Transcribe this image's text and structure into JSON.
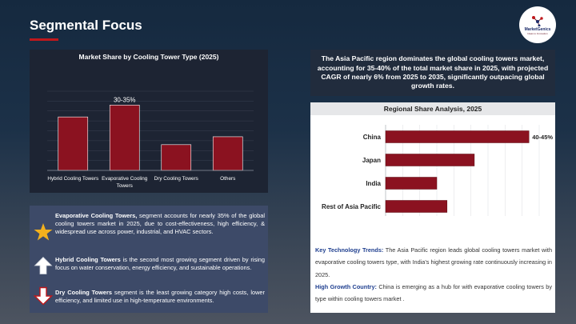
{
  "page": {
    "title": "Segmental Focus",
    "logo": {
      "line1": "MarketGenics",
      "line2": "Ideas to Innovation"
    }
  },
  "left_chart_title": "Market Share by Cooling Tower Type (2025)",
  "right_chart_title": "Regional Share Analysis, 2025",
  "chart_data": [
    {
      "type": "bar",
      "title": "Market Share by Cooling Tower Type (2025)",
      "categories": [
        "Hybrid Cooling Towers",
        "Evaporative Cooling Towers",
        "Dry Cooling Towers",
        "Others"
      ],
      "values": [
        27,
        33,
        13,
        17
      ],
      "data_labels": [
        "",
        "30-35%",
        "",
        ""
      ],
      "ylim": [
        0,
        40
      ],
      "color": "#8b1220",
      "grid": true
    },
    {
      "type": "bar",
      "orientation": "horizontal",
      "title": "Regional Share Analysis, 2025",
      "categories": [
        "China",
        "Japan",
        "India",
        "Rest of Asia Pacific"
      ],
      "values": [
        42,
        26,
        15,
        18
      ],
      "data_labels": [
        "40-45%",
        "",
        "",
        ""
      ],
      "xlim": [
        0,
        45
      ],
      "color": "#8b1220",
      "grid": true
    }
  ],
  "segments": [
    {
      "icon": "star-icon",
      "bold": "Evaporative Cooling Towers,",
      "text": " segment accounts for nearly 35% of the global cooling towers market in 2025, due to cost-effectiveness, high efficiency, & widespread use across power, industrial, and HVAC sectors."
    },
    {
      "icon": "arrow-up-icon",
      "bold": "Hybrid Cooling Towers",
      "text": " is the second most growing segment driven by rising focus on water conservation, energy efficiency, and sustainable operations."
    },
    {
      "icon": "arrow-down-icon",
      "bold": "Dry Cooling Towers",
      "text": " segment is the least growing category high costs, lower efficiency, and limited use in high-temperature environments."
    }
  ],
  "insight": "The Asia Pacific region dominates the global cooling towers market, accounting for 35-40% of the total market share in 2025, with projected CAGR of nearly 6% from 2025 to 2035, significantly outpacing global growth rates.",
  "key_trends": {
    "label": "Key Technology Trends:",
    "text": " The Asia Pacific region leads global cooling towers market with evaporative cooling towers type, with India's highest growing rate continuously increasing in 2025."
  },
  "growth_country": {
    "label": "High Growth Country:",
    "text": " China is emerging as a hub for with evaporative cooling towers by type within cooling towers market ."
  },
  "colors": {
    "accent": "#c0181c",
    "bar": "#8b1220",
    "link": "#1f3f8f"
  }
}
